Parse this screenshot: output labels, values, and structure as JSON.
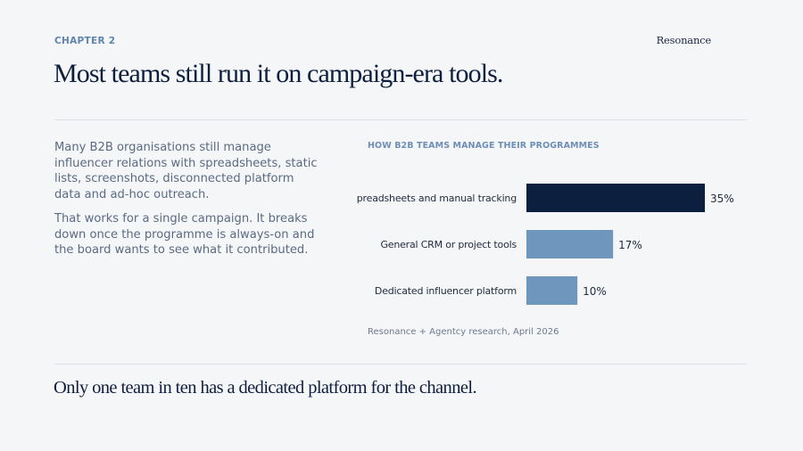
{
  "header": {
    "chapter": "CHAPTER 2",
    "brand": "Resonance",
    "headline": "Most teams still run it on campaign-era tools."
  },
  "body": {
    "paragraphs": [
      "Many B2B organisations still manage influencer relations with spreadsheets, static lists, screenshots, disconnected platform data and ad-hoc outreach.",
      "That works for a single campaign. It breaks down once the programme is always-on and the board wants to see what it contributed."
    ]
  },
  "chart_data": {
    "type": "bar",
    "orientation": "horizontal",
    "title": "HOW B2B TEAMS MANAGE THEIR PROGRAMMES",
    "categories": [
      "Spreadsheets and manual tracking",
      "General CRM or project tools",
      "Dedicated influencer platform"
    ],
    "values": [
      35,
      17,
      10
    ],
    "value_labels": [
      "35%",
      "17%",
      "10%"
    ],
    "unit": "%",
    "xlim": [
      0,
      35
    ],
    "grid": false,
    "colors": [
      "#0c1f3f",
      "#6f96bd",
      "#6f96bd"
    ],
    "source": "Resonance + Agentcy research, April 2026"
  },
  "footer": {
    "takeaway": "Only one team in ten has a dedicated platform for the channel."
  },
  "colors": {
    "background": "#f5f6f8",
    "accent": "#5f84ad",
    "primary": "#0e1f3d"
  }
}
